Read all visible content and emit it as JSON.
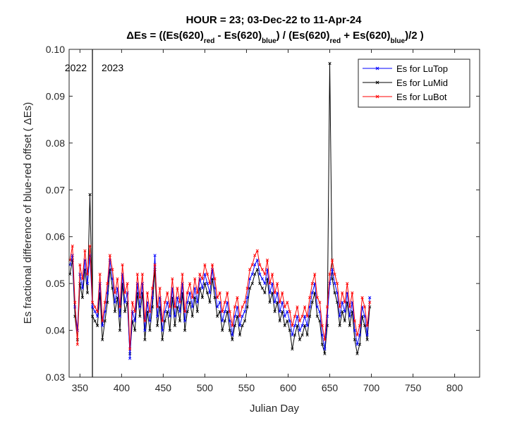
{
  "chart_data": {
    "type": "line",
    "title_line1": "HOUR = 23; 03-Dec-22 to 11-Apr-24",
    "title_line2": {
      "prefix": "ΔEs = ((Es(620)",
      "sub1": "red",
      "mid1": " - Es(620)",
      "sub2": "blue",
      "mid2": ") / (Es(620)",
      "sub3": "red",
      "mid3": " + Es(620)",
      "sub4": "blue",
      "suffix": ")/2  )"
    },
    "xlabel": "Julian Day",
    "ylabel": "Es fractional difference of blue-red offset (  ΔEs)",
    "xlim": [
      337,
      830
    ],
    "ylim": [
      0.03,
      0.1
    ],
    "xticks": [
      350,
      400,
      450,
      500,
      550,
      600,
      650,
      700,
      750,
      800
    ],
    "yticks": [
      0.03,
      0.04,
      0.05,
      0.06,
      0.07,
      0.08,
      0.09,
      0.1
    ],
    "ytick_labels": [
      "0.03",
      "0.04",
      "0.05",
      "0.06",
      "0.07",
      "0.08",
      "0.09",
      "0.10"
    ],
    "year_divider_x": 365,
    "year_labels": [
      "2022",
      "2023"
    ],
    "legend_position": "top-right",
    "x": [
      338,
      341,
      344,
      347,
      350,
      353,
      356,
      359,
      362,
      365,
      368,
      371,
      374,
      377,
      380,
      383,
      386,
      389,
      392,
      395,
      398,
      401,
      404,
      407,
      410,
      413,
      416,
      419,
      422,
      425,
      428,
      431,
      434,
      437,
      440,
      443,
      446,
      449,
      452,
      455,
      458,
      461,
      464,
      467,
      470,
      473,
      476,
      479,
      482,
      485,
      488,
      491,
      494,
      497,
      500,
      503,
      506,
      509,
      512,
      515,
      518,
      521,
      524,
      527,
      530,
      533,
      536,
      539,
      542,
      545,
      548,
      551,
      554,
      557,
      560,
      563,
      566,
      569,
      572,
      575,
      578,
      581,
      584,
      587,
      590,
      593,
      596,
      599,
      602,
      605,
      608,
      611,
      614,
      617,
      620,
      623,
      626,
      629,
      632,
      635,
      638,
      641,
      644,
      647,
      650,
      653,
      656,
      659,
      662,
      665,
      668,
      671,
      674,
      677,
      680,
      683,
      686,
      689,
      692,
      695,
      698
    ],
    "series": [
      {
        "name": "Es for LuTop",
        "color": "#0000ff",
        "values": [
          0.054,
          0.056,
          0.045,
          0.04,
          0.052,
          0.049,
          0.055,
          0.05,
          0.056,
          0.045,
          0.044,
          0.043,
          0.05,
          0.041,
          0.044,
          0.048,
          0.055,
          0.051,
          0.046,
          0.049,
          0.043,
          0.052,
          0.046,
          0.048,
          0.034,
          0.044,
          0.042,
          0.05,
          0.045,
          0.05,
          0.04,
          0.046,
          0.042,
          0.047,
          0.056,
          0.043,
          0.047,
          0.04,
          0.044,
          0.046,
          0.043,
          0.049,
          0.043,
          0.047,
          0.044,
          0.05,
          0.042,
          0.046,
          0.048,
          0.045,
          0.049,
          0.046,
          0.051,
          0.049,
          0.052,
          0.05,
          0.048,
          0.053,
          0.049,
          0.045,
          0.046,
          0.042,
          0.044,
          0.046,
          0.042,
          0.039,
          0.043,
          0.045,
          0.041,
          0.043,
          0.044,
          0.047,
          0.051,
          0.052,
          0.054,
          0.055,
          0.052,
          0.051,
          0.05,
          0.053,
          0.048,
          0.05,
          0.046,
          0.048,
          0.044,
          0.046,
          0.043,
          0.044,
          0.042,
          0.039,
          0.041,
          0.043,
          0.04,
          0.041,
          0.043,
          0.041,
          0.045,
          0.048,
          0.05,
          0.045,
          0.044,
          0.039,
          0.036,
          0.043,
          0.05,
          0.053,
          0.05,
          0.048,
          0.043,
          0.046,
          0.044,
          0.048,
          0.043,
          0.046,
          0.04,
          0.037,
          0.039,
          0.045,
          0.043,
          0.039,
          0.047
        ]
      },
      {
        "name": "Es for LuMid",
        "color": "#000000",
        "values": [
          0.052,
          0.055,
          0.043,
          0.038,
          0.05,
          0.047,
          0.053,
          0.048,
          0.069,
          0.043,
          0.042,
          0.041,
          0.048,
          0.038,
          0.042,
          0.046,
          0.053,
          0.049,
          0.044,
          0.047,
          0.04,
          0.05,
          0.044,
          0.046,
          0.035,
          0.042,
          0.04,
          0.048,
          0.043,
          0.048,
          0.038,
          0.044,
          0.04,
          0.045,
          0.053,
          0.041,
          0.045,
          0.038,
          0.042,
          0.044,
          0.04,
          0.047,
          0.041,
          0.045,
          0.042,
          0.048,
          0.04,
          0.044,
          0.046,
          0.043,
          0.047,
          0.044,
          0.049,
          0.047,
          0.05,
          0.048,
          0.046,
          0.051,
          0.047,
          0.043,
          0.044,
          0.04,
          0.042,
          0.044,
          0.04,
          0.038,
          0.041,
          0.043,
          0.039,
          0.041,
          0.042,
          0.045,
          0.049,
          0.05,
          0.052,
          0.053,
          0.05,
          0.049,
          0.048,
          0.051,
          0.046,
          0.048,
          0.044,
          0.046,
          0.042,
          0.044,
          0.041,
          0.042,
          0.04,
          0.036,
          0.039,
          0.041,
          0.038,
          0.039,
          0.041,
          0.039,
          0.043,
          0.046,
          0.048,
          0.043,
          0.042,
          0.037,
          0.035,
          0.041,
          0.097,
          0.051,
          0.048,
          0.046,
          0.041,
          0.044,
          0.042,
          0.046,
          0.041,
          0.044,
          0.038,
          0.035,
          0.037,
          0.043,
          0.041,
          0.038,
          0.045
        ]
      },
      {
        "name": "Es for LuBot",
        "color": "#ff0000",
        "values": [
          0.055,
          0.058,
          0.046,
          0.037,
          0.054,
          0.051,
          0.057,
          0.052,
          0.058,
          0.046,
          0.045,
          0.044,
          0.052,
          0.042,
          0.046,
          0.05,
          0.056,
          0.053,
          0.048,
          0.051,
          0.045,
          0.054,
          0.048,
          0.05,
          0.036,
          0.046,
          0.044,
          0.052,
          0.047,
          0.052,
          0.042,
          0.048,
          0.044,
          0.049,
          0.054,
          0.045,
          0.049,
          0.042,
          0.046,
          0.048,
          0.045,
          0.051,
          0.045,
          0.049,
          0.046,
          0.052,
          0.044,
          0.048,
          0.05,
          0.047,
          0.051,
          0.048,
          0.052,
          0.051,
          0.054,
          0.052,
          0.05,
          0.054,
          0.051,
          0.047,
          0.048,
          0.044,
          0.046,
          0.048,
          0.044,
          0.041,
          0.045,
          0.047,
          0.043,
          0.045,
          0.046,
          0.049,
          0.053,
          0.054,
          0.056,
          0.057,
          0.054,
          0.053,
          0.052,
          0.055,
          0.05,
          0.052,
          0.048,
          0.05,
          0.046,
          0.048,
          0.045,
          0.046,
          0.044,
          0.041,
          0.043,
          0.045,
          0.042,
          0.043,
          0.045,
          0.043,
          0.047,
          0.05,
          0.052,
          0.047,
          0.046,
          0.041,
          0.038,
          0.045,
          0.052,
          0.055,
          0.052,
          0.05,
          0.045,
          0.048,
          0.046,
          0.05,
          0.045,
          0.048,
          0.042,
          0.039,
          0.041,
          0.047,
          0.045,
          0.041,
          0.046
        ]
      }
    ]
  }
}
